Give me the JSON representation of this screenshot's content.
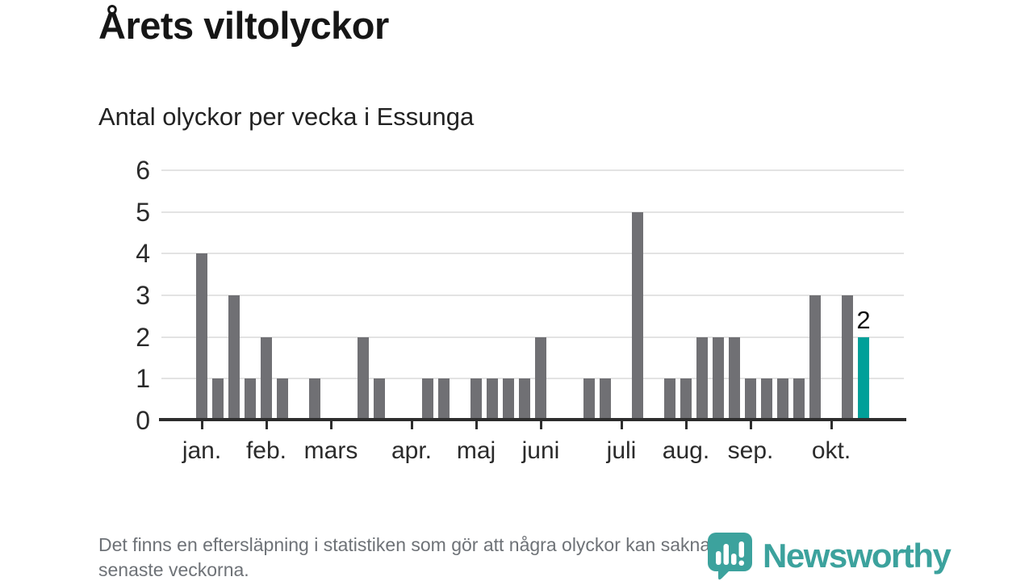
{
  "header": {
    "title": "Årets viltolyckor",
    "subtitle": "Antal olyckor per vecka i Essunga"
  },
  "chart_data": {
    "type": "bar",
    "title": "Årets viltolyckor",
    "subtitle": "Antal olyckor per vecka i Essunga",
    "x_description": "veckor jan.–okt.",
    "values": [
      0,
      0,
      4,
      1,
      3,
      1,
      2,
      1,
      0,
      1,
      0,
      0,
      2,
      1,
      0,
      0,
      1,
      1,
      0,
      1,
      1,
      1,
      1,
      2,
      0,
      0,
      1,
      1,
      0,
      5,
      0,
      1,
      1,
      2,
      2,
      2,
      1,
      1,
      1,
      1,
      3,
      0,
      3,
      2,
      0,
      0
    ],
    "highlight_index": 43,
    "bar_value_label": {
      "index": 43,
      "text": "2"
    },
    "y_ticks": [
      0,
      1,
      2,
      3,
      4,
      5,
      6
    ],
    "ylim": [
      0,
      6
    ],
    "month_ticks": [
      {
        "label": "jan.",
        "week": 2
      },
      {
        "label": "feb.",
        "week": 6
      },
      {
        "label": "mars",
        "week": 10
      },
      {
        "label": "apr.",
        "week": 15
      },
      {
        "label": "maj",
        "week": 19
      },
      {
        "label": "juni",
        "week": 23
      },
      {
        "label": "juli",
        "week": 28
      },
      {
        "label": "aug.",
        "week": 32
      },
      {
        "label": "sep.",
        "week": 36
      },
      {
        "label": "okt.",
        "week": 41
      }
    ],
    "grid": true,
    "legend_position": "none",
    "colors": {
      "bar": "#707074",
      "highlight": "#00a099",
      "grid": "#e3e3e3",
      "axis": "#2d2d2d"
    }
  },
  "footer": {
    "line1": "Det finns en eftersläpning i statistiken som gör att några olyckor kan saknas de",
    "line2": "senaste veckorna."
  },
  "logo": {
    "text": "Newsworthy",
    "icon": "newsworthy-speech-bubble-chart-icon",
    "color": "#3ca29d"
  }
}
